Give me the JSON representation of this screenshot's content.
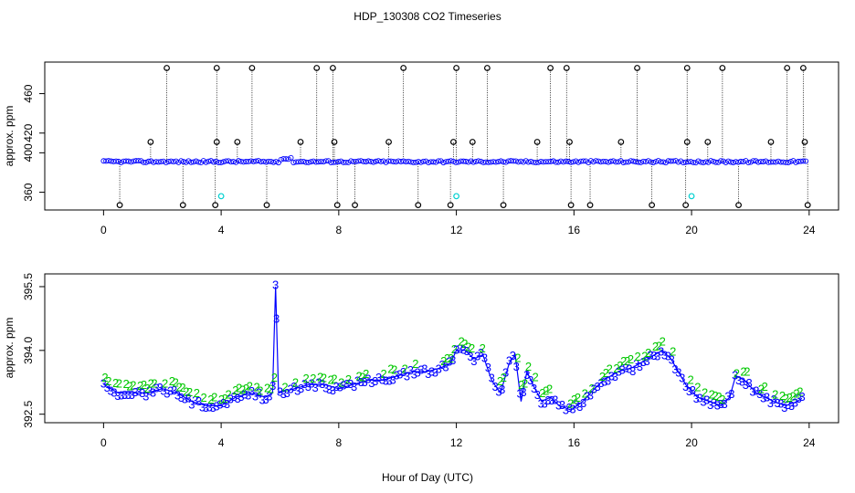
{
  "figure": {
    "title": "HDP_130308  CO2 Timeseries",
    "xlabel": "Hour of Day (UTC)"
  },
  "colors": {
    "blue": "#0000ff",
    "green": "#00c800",
    "cyan": "#00d0d0",
    "black": "#000000"
  },
  "chart_data": [
    {
      "type": "scatter",
      "title": "",
      "xlabel": "",
      "ylabel": "approx. ppm",
      "xlim": [
        -2,
        25
      ],
      "ylim": [
        342,
        492
      ],
      "xticks": [
        0,
        4,
        8,
        12,
        16,
        20,
        24
      ],
      "yticks": [
        360,
        400,
        420,
        460
      ],
      "grid": false,
      "legend": "none",
      "baseline": 391,
      "spikes_high": [
        2.15,
        3.85,
        5.05,
        7.25,
        7.8,
        10.2,
        12.0,
        13.05,
        15.2,
        15.75,
        18.15,
        19.85,
        21.05,
        23.25,
        23.8
      ],
      "high_value": 486,
      "spikes_mid": [
        1.6,
        3.85,
        4.55,
        6.7,
        7.85,
        9.7,
        11.9,
        12.55,
        14.75,
        15.85,
        17.6,
        19.85,
        20.55,
        22.7,
        23.85
      ],
      "mid_value": 411,
      "spikes_low": [
        0.55,
        2.7,
        3.8,
        5.55,
        7.95,
        8.55,
        10.7,
        11.8,
        13.6,
        15.9,
        16.55,
        18.65,
        19.8,
        21.6,
        23.95
      ],
      "low_value": 347,
      "cyan_points": [
        {
          "x": 4.0,
          "y": 356
        },
        {
          "x": 12.0,
          "y": 356
        },
        {
          "x": 20.0,
          "y": 356
        }
      ]
    },
    {
      "type": "line",
      "title": "",
      "xlabel": "Hour of Day (UTC)",
      "ylabel": "approx. ppm",
      "xlim": [
        -2,
        25
      ],
      "ylim": [
        392.3,
        395.8
      ],
      "xticks": [
        0,
        4,
        8,
        12,
        16,
        20,
        24
      ],
      "yticks": [
        392.5,
        394.0,
        395.5
      ],
      "grid": false,
      "legend": "none",
      "series": [
        {
          "name": "3",
          "color": "#0000ff",
          "marker": "3"
        },
        {
          "name": "2",
          "color": "#00c800",
          "marker": "2"
        }
      ],
      "anchors": [
        [
          0,
          393.2
        ],
        [
          0.5,
          393.0
        ],
        [
          1.0,
          393.0
        ],
        [
          1.5,
          393.0
        ],
        [
          2.0,
          393.1
        ],
        [
          2.5,
          393.0
        ],
        [
          3.0,
          392.8
        ],
        [
          3.5,
          392.7
        ],
        [
          4.0,
          392.7
        ],
        [
          4.5,
          392.9
        ],
        [
          5.0,
          393.0
        ],
        [
          5.5,
          392.9
        ],
        [
          5.75,
          393.0
        ],
        [
          5.85,
          395.5
        ],
        [
          5.95,
          393.0
        ],
        [
          6.5,
          393.1
        ],
        [
          7.0,
          393.2
        ],
        [
          7.5,
          393.2
        ],
        [
          8.0,
          393.1
        ],
        [
          8.5,
          393.2
        ],
        [
          9.0,
          393.3
        ],
        [
          9.5,
          393.3
        ],
        [
          10.0,
          393.4
        ],
        [
          10.5,
          393.5
        ],
        [
          11.0,
          393.5
        ],
        [
          11.5,
          393.6
        ],
        [
          11.8,
          393.7
        ],
        [
          12.0,
          394.0
        ],
        [
          12.3,
          394.0
        ],
        [
          12.6,
          393.8
        ],
        [
          12.9,
          393.9
        ],
        [
          13.2,
          393.3
        ],
        [
          13.5,
          393.0
        ],
        [
          13.8,
          393.7
        ],
        [
          14.0,
          393.9
        ],
        [
          14.2,
          392.8
        ],
        [
          14.4,
          393.5
        ],
        [
          14.6,
          393.2
        ],
        [
          14.9,
          392.8
        ],
        [
          15.2,
          392.9
        ],
        [
          15.5,
          392.7
        ],
        [
          15.9,
          392.6
        ],
        [
          16.3,
          392.8
        ],
        [
          16.7,
          393.1
        ],
        [
          17.0,
          393.3
        ],
        [
          17.5,
          393.5
        ],
        [
          18.0,
          393.6
        ],
        [
          18.5,
          393.8
        ],
        [
          19.0,
          394.0
        ],
        [
          19.3,
          393.8
        ],
        [
          19.8,
          393.2
        ],
        [
          20.2,
          392.9
        ],
        [
          20.6,
          392.8
        ],
        [
          21.0,
          392.7
        ],
        [
          21.3,
          392.9
        ],
        [
          21.5,
          393.4
        ],
        [
          21.8,
          393.3
        ],
        [
          22.2,
          393.0
        ],
        [
          22.8,
          392.8
        ],
        [
          23.2,
          392.7
        ],
        [
          23.6,
          392.8
        ],
        [
          23.8,
          392.9
        ]
      ]
    }
  ]
}
